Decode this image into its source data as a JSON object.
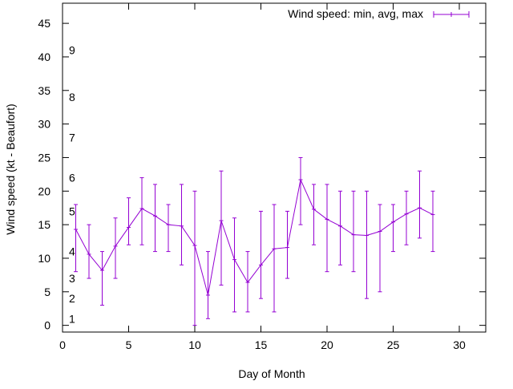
{
  "chart_data": {
    "type": "line",
    "title": "",
    "xlabel": "Day of Month",
    "ylabel": "Wind speed (kt - Beaufort)",
    "xlim": [
      0,
      32
    ],
    "ylim": [
      -1,
      48
    ],
    "x_ticks": [
      0,
      5,
      10,
      15,
      20,
      25,
      30
    ],
    "y_ticks": [
      0,
      5,
      10,
      15,
      20,
      25,
      30,
      35,
      40,
      45
    ],
    "grid": false,
    "legend_position": "top-right",
    "series": [
      {
        "name": "Wind speed: min, avg, max",
        "color": "#9400d3",
        "x": [
          1,
          2,
          3,
          4,
          5,
          6,
          7,
          8,
          9,
          10,
          11,
          12,
          13,
          14,
          15,
          16,
          17,
          18,
          19,
          20,
          21,
          22,
          23,
          24,
          25,
          26,
          27,
          28
        ],
        "avg": [
          14.3,
          10.6,
          8.2,
          11.8,
          14.6,
          17.4,
          16.3,
          15.0,
          14.8,
          11.9,
          4.5,
          15.6,
          9.8,
          6.4,
          9.0,
          11.4,
          11.6,
          21.7,
          17.3,
          15.8,
          14.8,
          13.5,
          13.4,
          14.0,
          15.4,
          16.6,
          17.5,
          16.5
        ],
        "min": [
          8,
          7,
          3,
          7,
          12,
          12,
          11,
          11,
          9,
          0,
          1,
          6,
          2,
          2,
          4,
          2,
          7,
          15,
          12,
          8,
          9,
          8,
          4,
          5,
          11,
          12,
          13,
          11
        ],
        "max": [
          18,
          15,
          11,
          16,
          19,
          22,
          21,
          18,
          21,
          20,
          11,
          23,
          16,
          11,
          17,
          18,
          17,
          25,
          21,
          21,
          20,
          20,
          20,
          18,
          18,
          20,
          23,
          20
        ]
      }
    ],
    "beaufort_labels": [
      {
        "text": "1",
        "kt": 1
      },
      {
        "text": "2",
        "kt": 4
      },
      {
        "text": "3",
        "kt": 7
      },
      {
        "text": "4",
        "kt": 11
      },
      {
        "text": "5",
        "kt": 17
      },
      {
        "text": "6",
        "kt": 22
      },
      {
        "text": "7",
        "kt": 28
      },
      {
        "text": "8",
        "kt": 34
      },
      {
        "text": "9",
        "kt": 41
      }
    ]
  }
}
